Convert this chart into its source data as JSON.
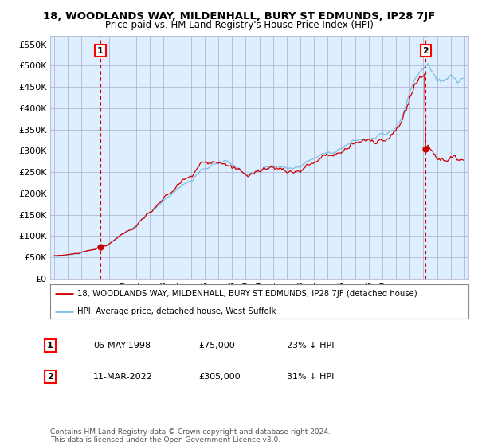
{
  "title": "18, WOODLANDS WAY, MILDENHALL, BURY ST EDMUNDS, IP28 7JF",
  "subtitle": "Price paid vs. HM Land Registry's House Price Index (HPI)",
  "legend_line1": "18, WOODLANDS WAY, MILDENHALL, BURY ST EDMUNDS, IP28 7JF (detached house)",
  "legend_line2": "HPI: Average price, detached house, West Suffolk",
  "annotation1_label": "1",
  "annotation1_date": "06-MAY-1998",
  "annotation1_price": "£75,000",
  "annotation1_hpi": "23% ↓ HPI",
  "annotation2_label": "2",
  "annotation2_date": "11-MAR-2022",
  "annotation2_price": "£305,000",
  "annotation2_hpi": "31% ↓ HPI",
  "footer": "Contains HM Land Registry data © Crown copyright and database right 2024.\nThis data is licensed under the Open Government Licence v3.0.",
  "ylim": [
    0,
    570000
  ],
  "yticks": [
    0,
    50000,
    100000,
    150000,
    200000,
    250000,
    300000,
    350000,
    400000,
    450000,
    500000,
    550000
  ],
  "hpi_color": "#7fbfdf",
  "price_color": "#cc0000",
  "vline_color": "#cc0000",
  "plot_bg_color": "#ddeeff",
  "background_color": "#ffffff",
  "grid_color": "#aaaacc"
}
